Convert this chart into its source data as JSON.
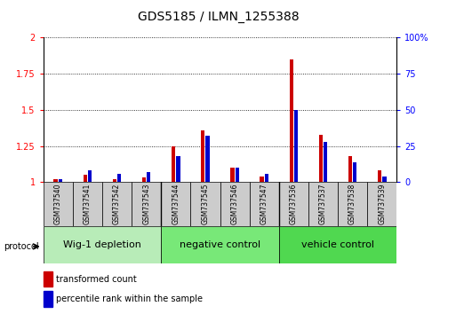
{
  "title": "GDS5185 / ILMN_1255388",
  "samples": [
    "GSM737540",
    "GSM737541",
    "GSM737542",
    "GSM737543",
    "GSM737544",
    "GSM737545",
    "GSM737546",
    "GSM737547",
    "GSM737536",
    "GSM737537",
    "GSM737538",
    "GSM737539"
  ],
  "red_values": [
    1.02,
    1.05,
    1.02,
    1.03,
    1.25,
    1.36,
    1.1,
    1.04,
    1.85,
    1.33,
    1.18,
    1.08
  ],
  "blue_values": [
    0.02,
    0.08,
    0.06,
    0.07,
    0.18,
    0.32,
    0.1,
    0.06,
    0.5,
    0.28,
    0.14,
    0.04
  ],
  "groups": [
    {
      "label": "Wig-1 depletion",
      "start": 0,
      "end": 4,
      "color": "#b8ecb8"
    },
    {
      "label": "negative control",
      "start": 4,
      "end": 8,
      "color": "#78e878"
    },
    {
      "label": "vehicle control",
      "start": 8,
      "end": 12,
      "color": "#50d850"
    }
  ],
  "protocol_label": "protocol",
  "ylim_left": [
    1.0,
    2.0
  ],
  "ylim_right": [
    0.0,
    1.0
  ],
  "yticks_left": [
    1.0,
    1.25,
    1.5,
    1.75,
    2.0
  ],
  "ytick_labels_left": [
    "1",
    "1.25",
    "1.5",
    "1.75",
    "2"
  ],
  "yticks_right": [
    0.0,
    0.25,
    0.5,
    0.75,
    1.0
  ],
  "ytick_labels_right": [
    "0",
    "25",
    "50",
    "75",
    "100%"
  ],
  "legend_red": "transformed count",
  "legend_blue": "percentile rank within the sample",
  "red_color": "#cc0000",
  "blue_color": "#0000cc",
  "title_fontsize": 10,
  "tick_fontsize": 7,
  "label_fontsize": 5.5,
  "group_fontsize": 8,
  "legend_fontsize": 7
}
